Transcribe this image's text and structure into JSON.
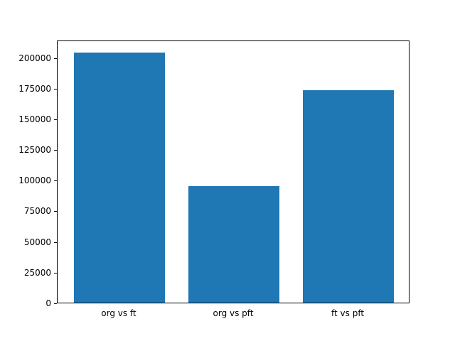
{
  "chart_data": {
    "type": "bar",
    "categories": [
      "org vs ft",
      "org vs pft",
      "ft vs pft"
    ],
    "values": [
      204000,
      95000,
      173000
    ],
    "title": "",
    "xlabel": "",
    "ylabel": "",
    "ylim": [
      0,
      214200
    ],
    "yticks": [
      0,
      25000,
      50000,
      75000,
      100000,
      125000,
      150000,
      175000,
      200000
    ],
    "grid": false,
    "legend": false,
    "colors": {
      "bar": "#1f77b4",
      "axis": "#000000",
      "background": "#ffffff"
    }
  }
}
